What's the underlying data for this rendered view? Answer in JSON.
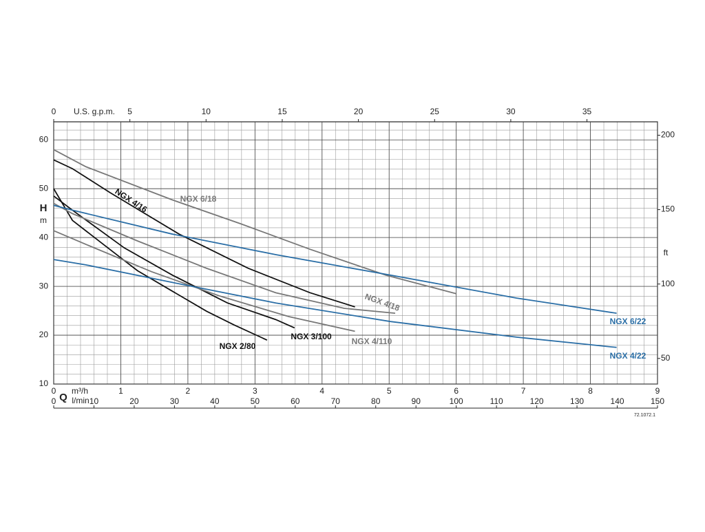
{
  "chart_data": {
    "type": "line",
    "x_label": "m³/h",
    "x2_label": "U.S. g.p.m.",
    "x3_label": "l/min",
    "flow_symbol": "Q",
    "y_label": "H",
    "y_unit": "m",
    "y2_label": "ft",
    "code": "72.1072.1",
    "xlim": [
      0,
      9
    ],
    "xticks": [
      0,
      1,
      2,
      3,
      4,
      5,
      6,
      7,
      8,
      9
    ],
    "x2lim": [
      0,
      39.63
    ],
    "x2ticks": [
      0,
      5,
      10,
      15,
      20,
      25,
      30,
      35
    ],
    "x3lim": [
      0,
      150
    ],
    "x3ticks": [
      0,
      10,
      20,
      30,
      40,
      50,
      60,
      70,
      80,
      90,
      100,
      110,
      120,
      130,
      140,
      150
    ],
    "ylim": [
      10,
      63.7
    ],
    "yticks": [
      10,
      20,
      30,
      40,
      50,
      60
    ],
    "y2lim": [
      32.8,
      209
    ],
    "y2ticks": [
      50,
      100,
      150,
      200
    ],
    "grid": {
      "x_step": 0.2,
      "y_step": 2
    },
    "series": [
      {
        "name": "NGX 2/80",
        "color": "#111111",
        "x": [
          0,
          0.28,
          0.74,
          1.25,
          1.77,
          2.28,
          2.69,
          3.18
        ],
        "values": [
          50,
          43.5,
          38.6,
          33.2,
          29.0,
          24.9,
          22.1,
          19.0
        ]
      },
      {
        "name": "NGX 3/100",
        "color": "#111111",
        "x": [
          0,
          0.28,
          1.05,
          1.77,
          2.59,
          3.31,
          3.59
        ],
        "values": [
          48.5,
          45.6,
          37.9,
          32.3,
          26.6,
          23.2,
          21.5
        ]
      },
      {
        "name": "NGX 4/16",
        "color": "#111111",
        "x": [
          0,
          0.28,
          0.84,
          1.87,
          2.9,
          3.82,
          4.49
        ],
        "values": [
          55.9,
          54.1,
          49.2,
          40.7,
          33.7,
          28.7,
          25.8
        ]
      },
      {
        "name": "NGX 4/18",
        "color": "#777777",
        "x": [
          0,
          0.28,
          1.25,
          2.28,
          3.31,
          4.33,
          5.09
        ],
        "values": [
          47.0,
          44.9,
          39.3,
          33.7,
          28.7,
          25.5,
          24.5
        ]
      },
      {
        "name": "NGX 4/110",
        "color": "#777777",
        "x": [
          0,
          0.48,
          1.46,
          2.48,
          3.51,
          4.49
        ],
        "values": [
          41.4,
          38.6,
          33.0,
          28.0,
          23.8,
          20.8
        ]
      },
      {
        "name": "NGX 6/18",
        "color": "#777777",
        "x": [
          0,
          0.48,
          1.77,
          2.79,
          3.82,
          4.95,
          6.0
        ],
        "values": [
          58.0,
          54.5,
          47.7,
          42.8,
          37.6,
          32.3,
          28.5
        ]
      },
      {
        "name": "NGX 6/22",
        "color": "#2a6ea6",
        "x": [
          0,
          0.28,
          1.77,
          3.31,
          5.02,
          6.9,
          8.39
        ],
        "values": [
          46.6,
          45.6,
          40.7,
          36.5,
          32.3,
          27.6,
          24.5
        ]
      },
      {
        "name": "NGX 4/22",
        "color": "#2a6ea6",
        "x": [
          0,
          0.48,
          1.77,
          3.31,
          5.02,
          6.9,
          8.39
        ],
        "values": [
          35.5,
          34.4,
          30.8,
          26.6,
          22.8,
          19.6,
          17.5
        ]
      }
    ]
  }
}
